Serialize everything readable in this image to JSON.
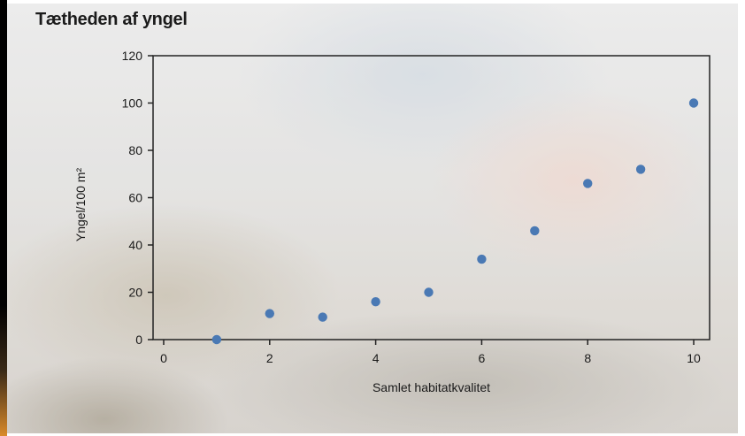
{
  "title": "Tætheden af yngel",
  "chart_data": {
    "type": "scatter",
    "title": "Tætheden af yngel",
    "xlabel": "Samlet habitatkvalitet",
    "ylabel": "Yngel/100 m²",
    "xlim": [
      -0.2,
      10.3
    ],
    "ylim": [
      0,
      120
    ],
    "xticks": [
      0,
      2,
      4,
      6,
      8,
      10
    ],
    "yticks": [
      0,
      20,
      40,
      60,
      80,
      100,
      120
    ],
    "grid": false,
    "series": [
      {
        "color": "#4a79b4",
        "x": [
          1,
          2,
          3,
          4,
          5,
          6,
          7,
          8,
          9,
          10
        ],
        "y": [
          0,
          11,
          9.5,
          16,
          20,
          34,
          46,
          66,
          72,
          100
        ]
      }
    ]
  }
}
